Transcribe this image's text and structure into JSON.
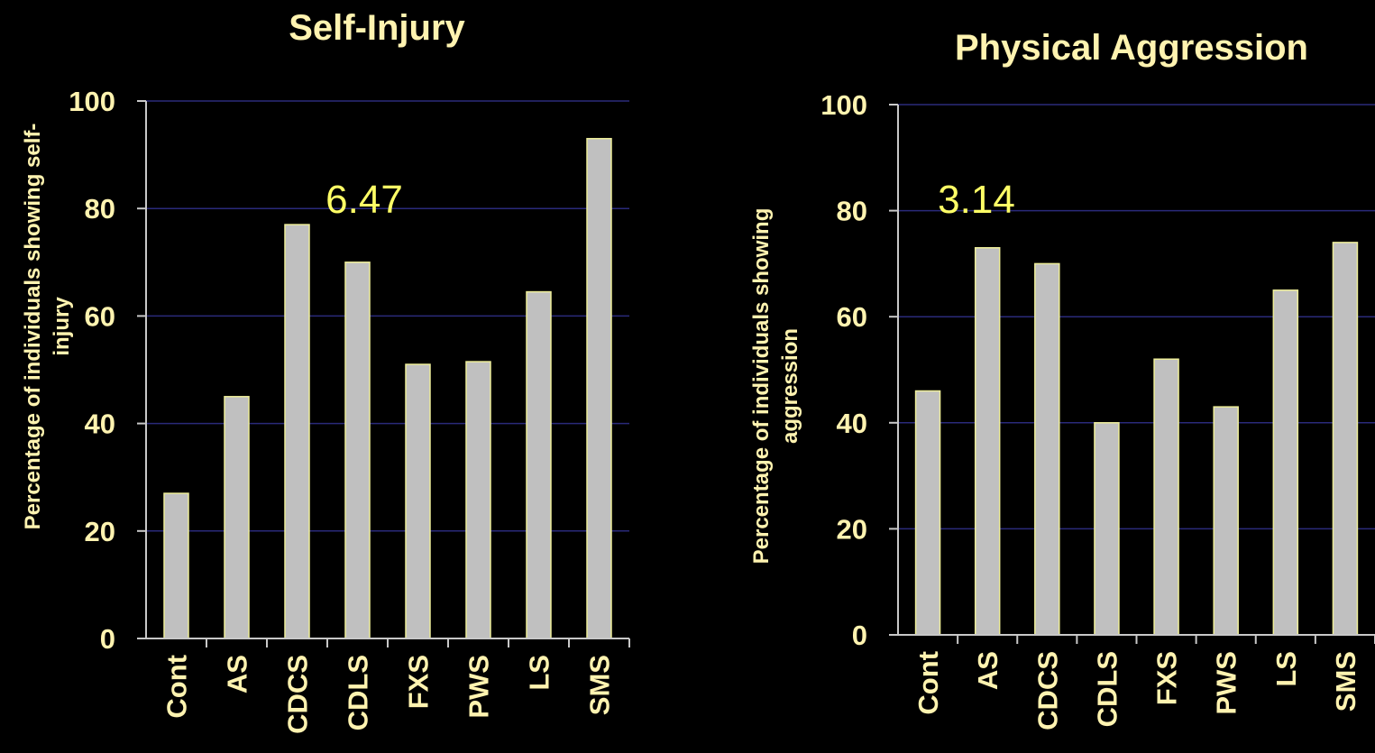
{
  "chart_data": [
    {
      "type": "bar",
      "title": "Self-Injury",
      "ylabel_line1": "Percentage of individuals showing self-",
      "ylabel_line2": "injury",
      "xlabel": "",
      "categories": [
        "Cont",
        "AS",
        "CDCS",
        "CDLS",
        "FXS",
        "PWS",
        "LS",
        "SMS"
      ],
      "values": [
        27,
        45,
        77,
        70,
        51,
        51.5,
        64.5,
        93
      ],
      "ylim": [
        0,
        100
      ],
      "yticks": [
        0,
        20,
        40,
        60,
        80,
        100
      ],
      "annotation": "6.47",
      "grid": true
    },
    {
      "type": "bar",
      "title": "Physical Aggression",
      "ylabel_line1": "Percentage of individuals showing",
      "ylabel_line2": "aggression",
      "xlabel": "",
      "categories": [
        "Cont",
        "AS",
        "CDCS",
        "CDLS",
        "FXS",
        "PWS",
        "LS",
        "SMS"
      ],
      "values": [
        46,
        73,
        70,
        40,
        52,
        43,
        65,
        74
      ],
      "ylim": [
        0,
        100
      ],
      "yticks": [
        0,
        20,
        40,
        60,
        80,
        100
      ],
      "annotation": "3.14",
      "grid": true
    }
  ],
  "colors": {
    "background": "#000000",
    "text": "#FFF3B0",
    "annotation": "#FFFF66",
    "bar": "#C0C0C0",
    "grid": "#2A2A7A"
  }
}
